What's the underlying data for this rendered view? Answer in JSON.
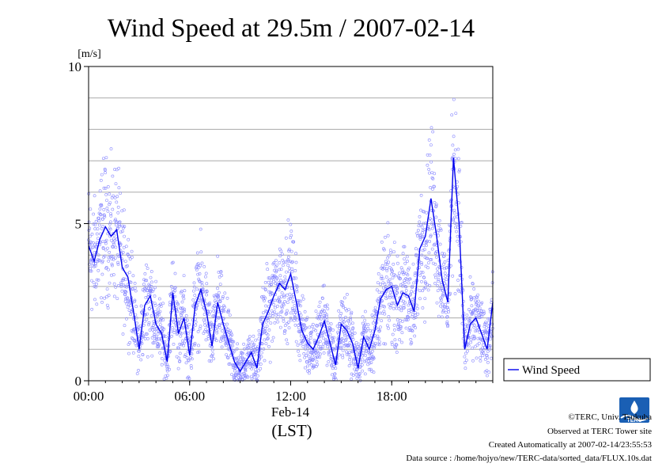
{
  "chart_data": {
    "type": "line",
    "title": "Wind Speed at 29.5m / 2007-02-14",
    "ylabel": "[m/s]",
    "xlabel": "(LST)",
    "date_label": "Feb-14",
    "ylim": [
      0,
      10
    ],
    "xlim": [
      "00:00",
      "24:00"
    ],
    "y_ticks": [
      "0",
      "5",
      "10"
    ],
    "x_ticks": [
      "00:00",
      "06:00",
      "12:00",
      "18:00"
    ],
    "grid": true,
    "legend_position": "right",
    "series": [
      {
        "name": "Wind Speed",
        "color": "#0000ee",
        "x": [
          "00:00",
          "00:20",
          "00:40",
          "01:00",
          "01:20",
          "01:40",
          "02:00",
          "02:20",
          "02:40",
          "03:00",
          "03:20",
          "03:40",
          "04:00",
          "04:20",
          "04:40",
          "05:00",
          "05:20",
          "05:40",
          "06:00",
          "06:20",
          "06:40",
          "07:00",
          "07:20",
          "07:40",
          "08:00",
          "08:20",
          "08:40",
          "09:00",
          "09:20",
          "09:40",
          "10:00",
          "10:20",
          "10:40",
          "11:00",
          "11:20",
          "11:40",
          "12:00",
          "12:20",
          "12:40",
          "13:00",
          "13:20",
          "13:40",
          "14:00",
          "14:20",
          "14:40",
          "15:00",
          "15:20",
          "15:40",
          "16:00",
          "16:20",
          "16:40",
          "17:00",
          "17:20",
          "17:40",
          "18:00",
          "18:20",
          "18:40",
          "19:00",
          "19:20",
          "19:40",
          "20:00",
          "20:20",
          "20:40",
          "21:00",
          "21:20",
          "21:40",
          "22:00",
          "22:20",
          "22:40",
          "23:00",
          "23:20",
          "23:40",
          "24:00"
        ],
        "y": [
          4.3,
          3.8,
          4.5,
          4.9,
          4.6,
          4.8,
          3.6,
          3.3,
          2.2,
          1.0,
          2.4,
          2.7,
          1.8,
          1.5,
          0.6,
          2.8,
          1.5,
          2.0,
          0.8,
          2.4,
          2.9,
          2.2,
          1.1,
          2.5,
          1.8,
          1.2,
          0.6,
          0.3,
          0.6,
          0.9,
          0.4,
          1.8,
          2.2,
          2.7,
          3.1,
          2.9,
          3.4,
          2.5,
          1.6,
          1.2,
          1.0,
          1.4,
          1.9,
          1.2,
          0.5,
          1.8,
          1.6,
          1.2,
          0.4,
          1.4,
          1.0,
          1.6,
          2.6,
          2.9,
          3.0,
          2.4,
          2.8,
          2.7,
          2.2,
          4.2,
          4.6,
          5.8,
          4.6,
          3.2,
          2.5,
          7.1,
          5.0,
          1.0,
          1.8,
          2.0,
          1.5,
          1.0,
          2.5
        ]
      }
    ],
    "scatter_note": "10-second samples shown as light blue open circles"
  },
  "footer": {
    "copyright": "©TERC, Univ. Tsukuba",
    "observed": "Observed at TERC Tower site",
    "created": "Created Automatically at 2007-02-14/23:55:53",
    "source": "Data source : /home/hojyo/new/TERC-data/sorted_data/FLUX.10s.dat"
  },
  "logo": {
    "text": "TERC"
  },
  "colors": {
    "line": "#0000ee",
    "points": "#8888ff",
    "grid": "#aaaaaa"
  }
}
